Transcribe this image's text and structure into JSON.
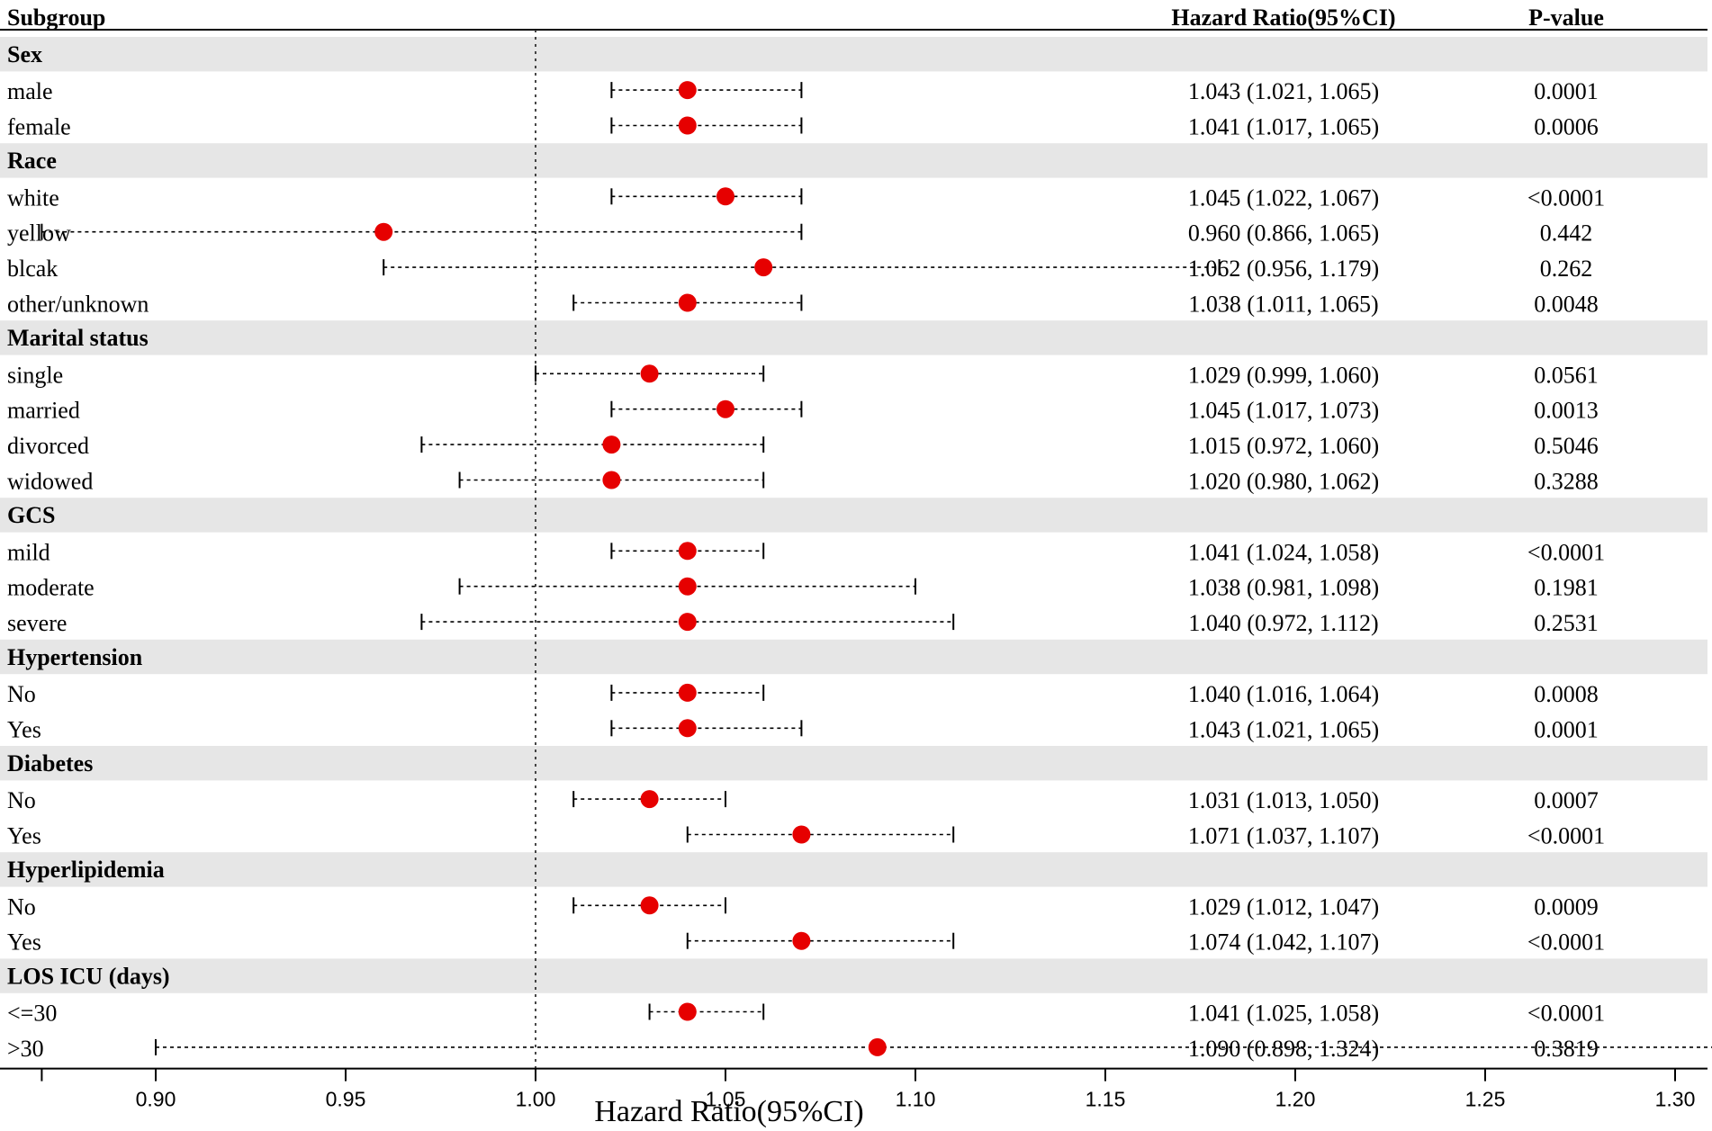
{
  "chart_data": {
    "type": "forest",
    "columns": {
      "subgroup": "Subgroup",
      "hr": "Hazard Ratio(95%CI)",
      "p": "P-value"
    },
    "xlabel": "Hazard Ratio(95%CI)",
    "reference_line": 1.0,
    "xlim": [
      0.87,
      1.32
    ],
    "ticks": [
      "0.90",
      "0.95",
      "1.00",
      "1.05",
      "1.10",
      "1.15",
      "1.20",
      "1.25",
      "1.30"
    ],
    "colors": {
      "point": "#e60000",
      "band": "#e6e6e6",
      "line": "#000000"
    },
    "groups": [
      {
        "name": "Sex",
        "rows": [
          {
            "label": "male",
            "hr": 1.04,
            "lo": 1.02,
            "hi": 1.07,
            "text": "1.043 (1.021, 1.065)",
            "p": "0.0001"
          },
          {
            "label": "female",
            "hr": 1.04,
            "lo": 1.02,
            "hi": 1.07,
            "text": "1.041 (1.017, 1.065)",
            "p": "0.0006"
          }
        ]
      },
      {
        "name": "Race",
        "rows": [
          {
            "label": "white",
            "hr": 1.05,
            "lo": 1.02,
            "hi": 1.07,
            "text": "1.045 (1.022, 1.067)",
            "p": "<0.0001"
          },
          {
            "label": "yellow",
            "hr": 0.96,
            "lo": 0.87,
            "hi": 1.07,
            "text": "0.960 (0.866, 1.065)",
            "p": "0.442"
          },
          {
            "label": "blcak",
            "hr": 1.06,
            "lo": 0.96,
            "hi": 1.18,
            "text": "1.062 (0.956, 1.179)",
            "p": "0.262"
          },
          {
            "label": "other/unknown",
            "hr": 1.04,
            "lo": 1.01,
            "hi": 1.07,
            "text": "1.038 (1.011, 1.065)",
            "p": "0.0048"
          }
        ]
      },
      {
        "name": "Marital status",
        "rows": [
          {
            "label": "single",
            "hr": 1.03,
            "lo": 1.0,
            "hi": 1.06,
            "text": "1.029 (0.999, 1.060)",
            "p": "0.0561"
          },
          {
            "label": "married",
            "hr": 1.05,
            "lo": 1.02,
            "hi": 1.07,
            "text": "1.045 (1.017, 1.073)",
            "p": "0.0013"
          },
          {
            "label": "divorced",
            "hr": 1.02,
            "lo": 0.97,
            "hi": 1.06,
            "text": "1.015 (0.972, 1.060)",
            "p": "0.5046"
          },
          {
            "label": "widowed",
            "hr": 1.02,
            "lo": 0.98,
            "hi": 1.06,
            "text": "1.020 (0.980, 1.062)",
            "p": "0.3288"
          }
        ]
      },
      {
        "name": "GCS",
        "rows": [
          {
            "label": "mild",
            "hr": 1.04,
            "lo": 1.02,
            "hi": 1.06,
            "text": "1.041 (1.024, 1.058)",
            "p": "<0.0001"
          },
          {
            "label": "moderate",
            "hr": 1.04,
            "lo": 0.98,
            "hi": 1.1,
            "text": "1.038 (0.981, 1.098)",
            "p": "0.1981"
          },
          {
            "label": "severe",
            "hr": 1.04,
            "lo": 0.97,
            "hi": 1.11,
            "text": "1.040 (0.972, 1.112)",
            "p": "0.2531"
          }
        ]
      },
      {
        "name": "Hypertension",
        "rows": [
          {
            "label": "No",
            "hr": 1.04,
            "lo": 1.02,
            "hi": 1.06,
            "text": "1.040 (1.016, 1.064)",
            "p": "0.0008"
          },
          {
            "label": "Yes",
            "hr": 1.04,
            "lo": 1.02,
            "hi": 1.07,
            "text": "1.043 (1.021, 1.065)",
            "p": "0.0001"
          }
        ]
      },
      {
        "name": "Diabetes",
        "rows": [
          {
            "label": "No",
            "hr": 1.03,
            "lo": 1.01,
            "hi": 1.05,
            "text": "1.031 (1.013, 1.050)",
            "p": "0.0007"
          },
          {
            "label": "Yes",
            "hr": 1.07,
            "lo": 1.04,
            "hi": 1.11,
            "text": "1.071 (1.037, 1.107)",
            "p": "<0.0001"
          }
        ]
      },
      {
        "name": "Hyperlipidemia",
        "rows": [
          {
            "label": "No",
            "hr": 1.03,
            "lo": 1.01,
            "hi": 1.05,
            "text": "1.029 (1.012, 1.047)",
            "p": "0.0009"
          },
          {
            "label": "Yes",
            "hr": 1.07,
            "lo": 1.04,
            "hi": 1.11,
            "text": "1.074 (1.042, 1.107)",
            "p": "<0.0001"
          }
        ]
      },
      {
        "name": "LOS ICU (days)",
        "rows": [
          {
            "label": "<=30",
            "hr": 1.04,
            "lo": 1.03,
            "hi": 1.06,
            "text": "1.041 (1.025, 1.058)",
            "p": "<0.0001"
          },
          {
            "label": ">30",
            "hr": 1.09,
            "lo": 0.9,
            "hi": 1.32,
            "text": "1.090 (0.898, 1.324)",
            "p": "0.3819"
          }
        ]
      }
    ]
  }
}
